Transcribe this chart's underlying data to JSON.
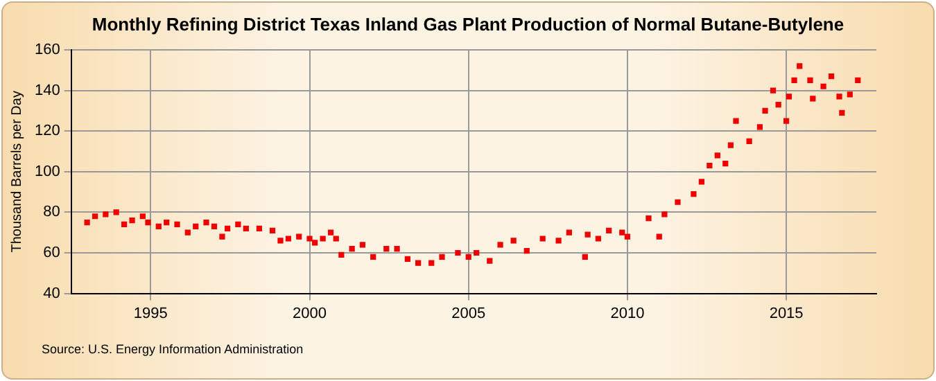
{
  "chart_data": {
    "type": "scatter",
    "title": "Monthly Refining District Texas Inland Gas Plant Production of Normal Butane-Butylene",
    "ylabel": "Thousand Barrels per Day",
    "annotations": [
      "Source: U.S. Energy Information Administration"
    ],
    "x": [
      "1993-01",
      "1993-04",
      "1993-08",
      "1993-12",
      "1994-03",
      "1994-06",
      "1994-10",
      "1994-12",
      "1995-04",
      "1995-07",
      "1995-11",
      "1996-03",
      "1996-06",
      "1996-10",
      "1997-01",
      "1997-04",
      "1997-06",
      "1997-10",
      "1998-01",
      "1998-06",
      "1998-11",
      "1999-02",
      "1999-05",
      "1999-09",
      "2000-01",
      "2000-03",
      "2000-06",
      "2000-09",
      "2000-11",
      "2001-01",
      "2001-05",
      "2001-09",
      "2002-01",
      "2002-06",
      "2002-10",
      "2003-02",
      "2003-06",
      "2003-11",
      "2004-03",
      "2004-09",
      "2005-01",
      "2005-04",
      "2005-09",
      "2006-01",
      "2006-06",
      "2006-11",
      "2007-05",
      "2007-11",
      "2008-03",
      "2008-09",
      "2008-10",
      "2009-02",
      "2009-06",
      "2009-11",
      "2010-01",
      "2010-09",
      "2011-01",
      "2011-03",
      "2011-08",
      "2012-02",
      "2012-05",
      "2012-08",
      "2012-11",
      "2013-02",
      "2013-04",
      "2013-06",
      "2013-11",
      "2014-03",
      "2014-05",
      "2014-08",
      "2014-10",
      "2015-01",
      "2015-02",
      "2015-04",
      "2015-06",
      "2015-10",
      "2015-11",
      "2016-03",
      "2016-06",
      "2016-09",
      "2016-10",
      "2017-01",
      "2017-04"
    ],
    "values": [
      75,
      78,
      79,
      80,
      74,
      76,
      78,
      75,
      73,
      75,
      74,
      70,
      73,
      75,
      73,
      68,
      72,
      74,
      72,
      72,
      71,
      66,
      67,
      68,
      67,
      65,
      67,
      70,
      67,
      59,
      62,
      64,
      58,
      62,
      62,
      57,
      55,
      55,
      58,
      60,
      58,
      60,
      56,
      64,
      66,
      61,
      67,
      66,
      70,
      58,
      69,
      67,
      71,
      70,
      68,
      77,
      68,
      79,
      85,
      89,
      95,
      103,
      108,
      104,
      113,
      125,
      115,
      122,
      130,
      140,
      133,
      125,
      137,
      145,
      152,
      145,
      136,
      142,
      147,
      137,
      129,
      138,
      145
    ],
    "color": "#ee0000",
    "marker": "square",
    "xlim": [
      "1992-07",
      "2017-11"
    ],
    "xticks": [
      {
        "value": "1995",
        "label": "1995"
      },
      {
        "value": "2000",
        "label": "2000"
      },
      {
        "value": "2005",
        "label": "2005"
      },
      {
        "value": "2010",
        "label": "2010"
      },
      {
        "value": "2015",
        "label": "2015"
      }
    ],
    "ylim": [
      40,
      160
    ],
    "yticks": [
      40,
      60,
      80,
      100,
      120,
      140,
      160
    ],
    "grid": true
  }
}
